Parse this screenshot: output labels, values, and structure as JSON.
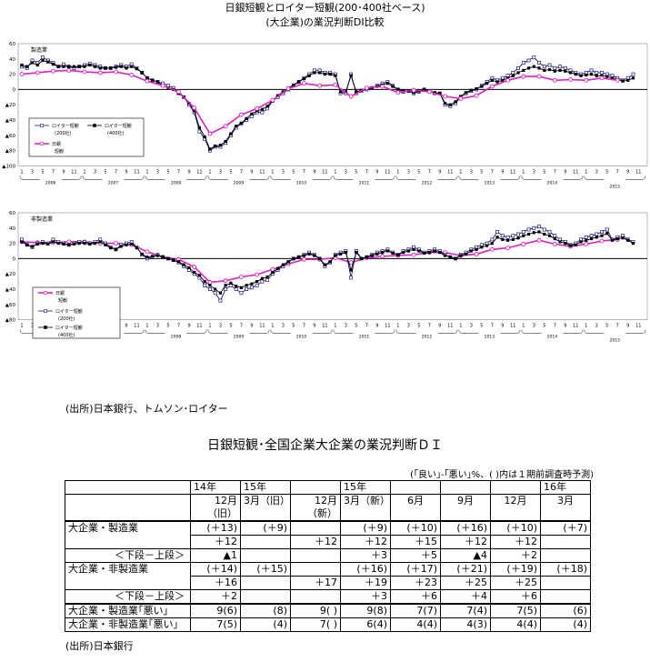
{
  "titles": {
    "line1": "日銀短観とロイター短観(200･400社ベース)",
    "line2": "(大企業)の業況判断DI比較"
  },
  "charts": {
    "top": {
      "panel_label": "製造業",
      "y_ticks": [
        "60",
        "40",
        "20",
        "0",
        "▲20",
        "▲40",
        "▲60",
        "▲80",
        "▲100"
      ],
      "legend": {
        "reuters200": [
          "ロイター短観",
          "(200社)"
        ],
        "reuters400": [
          "ロイター短観",
          "(400社)"
        ],
        "boj": [
          "日銀",
          "短観"
        ]
      },
      "years": [
        "2006",
        "2007",
        "2008",
        "2009",
        "2010",
        "2011",
        "2012",
        "2013",
        "2014",
        "2015"
      ]
    },
    "bottom": {
      "panel_label": "非製造業",
      "y_ticks": [
        "60",
        "40",
        "20",
        "0",
        "▲20",
        "▲40",
        "▲60",
        "▲80"
      ],
      "legend": {
        "boj": [
          "日銀",
          "短観"
        ],
        "reuters200": [
          "ロイター短観",
          "(200社)"
        ],
        "reuters400": [
          "ロイター短観",
          "(400社)"
        ]
      },
      "years": [
        "2006",
        "2007",
        "2008",
        "2009",
        "2010",
        "2011",
        "2012",
        "2013",
        "2014",
        "2015"
      ]
    },
    "month_ticks": [
      "1",
      "3",
      "5",
      "7",
      "9",
      "11"
    ]
  },
  "chart_data": [
    {
      "type": "line",
      "panel": "製造業",
      "x_unit": "month index from 2006-01",
      "ylim": [
        -100,
        60
      ],
      "series": [
        {
          "name": "ロイター短観(200社)",
          "color": "#1a1a80",
          "values": [
            30,
            28,
            38,
            35,
            42,
            38,
            35,
            30,
            33,
            30,
            28,
            30,
            32,
            34,
            32,
            30,
            28,
            28,
            30,
            32,
            30,
            33,
            28,
            22,
            15,
            12,
            10,
            8,
            5,
            2,
            -5,
            -10,
            -20,
            -30,
            -55,
            -65,
            -80,
            -75,
            -75,
            -70,
            -60,
            -50,
            -45,
            -40,
            -35,
            -30,
            -30,
            -25,
            -15,
            -10,
            -5,
            0,
            5,
            10,
            15,
            20,
            25,
            25,
            22,
            22,
            20,
            -5,
            -5,
            20,
            -5,
            -2,
            0,
            2,
            5,
            8,
            10,
            5,
            0,
            -3,
            -2,
            -5,
            -3,
            0,
            -2,
            -5,
            -5,
            -20,
            -22,
            -18,
            -10,
            -5,
            -2,
            0,
            5,
            10,
            15,
            12,
            15,
            18,
            22,
            28,
            35,
            38,
            42,
            35,
            30,
            32,
            28,
            30,
            28,
            25,
            22,
            20,
            22,
            25,
            22,
            22,
            20,
            18,
            15,
            12,
            15,
            20
          ]
        },
        {
          "name": "ロイター短観(400社)",
          "color": "#000000",
          "values": [
            32,
            30,
            35,
            32,
            38,
            36,
            33,
            30,
            30,
            30,
            30,
            30,
            30,
            32,
            30,
            28,
            28,
            28,
            29,
            30,
            28,
            30,
            27,
            22,
            15,
            12,
            10,
            5,
            2,
            0,
            -5,
            -10,
            -18,
            -28,
            -50,
            -62,
            -78,
            -74,
            -73,
            -68,
            -58,
            -48,
            -44,
            -38,
            -32,
            -28,
            -26,
            -22,
            -14,
            -8,
            -3,
            2,
            6,
            10,
            14,
            18,
            22,
            22,
            20,
            20,
            18,
            -3,
            -3,
            18,
            -3,
            -1,
            1,
            2,
            4,
            6,
            8,
            4,
            0,
            -2,
            -2,
            -4,
            -2,
            0,
            -2,
            -4,
            -5,
            -18,
            -20,
            -16,
            -9,
            -4,
            -1,
            1,
            4,
            8,
            12,
            10,
            12,
            15,
            18,
            22,
            25,
            28,
            30,
            28,
            25,
            26,
            24,
            25,
            24,
            22,
            20,
            18,
            19,
            20,
            18,
            18,
            17,
            15,
            13,
            11,
            12,
            15
          ]
        },
        {
          "name": "日銀短観",
          "color": "#e020c0",
          "values": [
            20,
            null,
            null,
            22,
            null,
            null,
            24,
            null,
            null,
            25,
            null,
            null,
            23,
            null,
            null,
            22,
            null,
            null,
            23,
            null,
            null,
            19,
            null,
            null,
            11,
            null,
            null,
            5,
            null,
            null,
            -3,
            null,
            null,
            -24,
            null,
            null,
            -58,
            null,
            null,
            -48,
            null,
            null,
            -33,
            null,
            null,
            -25,
            null,
            null,
            -14,
            null,
            null,
            1,
            null,
            null,
            8,
            null,
            null,
            5,
            null,
            null,
            6,
            null,
            null,
            -9,
            null,
            null,
            2,
            null,
            null,
            4,
            null,
            null,
            -4,
            null,
            null,
            -1,
            null,
            null,
            -3,
            null,
            null,
            -9,
            null,
            null,
            -12,
            null,
            null,
            -8,
            null,
            null,
            4,
            null,
            null,
            12,
            null,
            null,
            17,
            null,
            null,
            17,
            null,
            null,
            12,
            null,
            null,
            13,
            null,
            null,
            12,
            null,
            null,
            15,
            null,
            null,
            12
          ]
        }
      ]
    },
    {
      "type": "line",
      "panel": "非製造業",
      "x_unit": "month index from 2006-01",
      "ylim": [
        -80,
        60
      ],
      "series": [
        {
          "name": "日銀短観",
          "color": "#e020c0",
          "values": [
            22,
            null,
            null,
            21,
            null,
            null,
            21,
            null,
            null,
            22,
            null,
            null,
            22,
            null,
            null,
            20,
            null,
            null,
            20,
            null,
            null,
            18,
            null,
            null,
            9,
            null,
            null,
            2,
            null,
            null,
            -1,
            null,
            null,
            -11,
            null,
            null,
            -31,
            null,
            null,
            -29,
            null,
            null,
            -24,
            null,
            null,
            -21,
            null,
            null,
            -14,
            null,
            null,
            -7,
            null,
            null,
            -1,
            null,
            null,
            -1,
            null,
            null,
            1,
            null,
            null,
            -5,
            null,
            null,
            1,
            null,
            null,
            3,
            null,
            null,
            4,
            null,
            null,
            5,
            null,
            null,
            8,
            null,
            null,
            8,
            null,
            null,
            4,
            null,
            null,
            6,
            null,
            null,
            12,
            null,
            null,
            14,
            null,
            null,
            19,
            null,
            null,
            24,
            null,
            null,
            19,
            null,
            null,
            16,
            null,
            null,
            19,
            null,
            null,
            23,
            null,
            null,
            25
          ]
        },
        {
          "name": "ロイター短観(200社)",
          "color": "#1a1a80",
          "values": [
            25,
            18,
            15,
            20,
            22,
            20,
            25,
            22,
            20,
            18,
            20,
            22,
            22,
            20,
            22,
            25,
            20,
            15,
            12,
            18,
            20,
            22,
            15,
            5,
            0,
            2,
            5,
            2,
            0,
            -2,
            -5,
            -10,
            -15,
            -20,
            -25,
            -35,
            -40,
            -45,
            -55,
            -40,
            -35,
            -40,
            -45,
            -40,
            -38,
            -35,
            -30,
            -28,
            -20,
            -15,
            -10,
            -5,
            0,
            2,
            5,
            8,
            5,
            0,
            -10,
            -5,
            5,
            8,
            10,
            -25,
            10,
            0,
            2,
            5,
            8,
            10,
            12,
            8,
            5,
            10,
            12,
            15,
            12,
            8,
            10,
            12,
            10,
            5,
            2,
            0,
            5,
            8,
            12,
            15,
            18,
            20,
            25,
            35,
            30,
            28,
            30,
            32,
            35,
            38,
            40,
            42,
            38,
            35,
            30,
            25,
            22,
            18,
            20,
            25,
            28,
            30,
            32,
            35,
            38,
            25,
            28,
            30,
            25,
            22
          ]
        },
        {
          "name": "ロイター短観(400社)",
          "color": "#000000",
          "values": [
            22,
            18,
            16,
            19,
            20,
            19,
            22,
            20,
            19,
            18,
            19,
            20,
            20,
            19,
            20,
            22,
            18,
            14,
            12,
            16,
            18,
            19,
            14,
            6,
            2,
            3,
            4,
            2,
            0,
            -2,
            -4,
            -8,
            -12,
            -18,
            -22,
            -30,
            -35,
            -40,
            -45,
            -35,
            -32,
            -36,
            -38,
            -35,
            -33,
            -30,
            -26,
            -24,
            -18,
            -13,
            -8,
            -4,
            0,
            2,
            4,
            6,
            4,
            0,
            -8,
            -4,
            4,
            6,
            8,
            -15,
            8,
            0,
            2,
            4,
            6,
            8,
            10,
            7,
            5,
            8,
            10,
            12,
            10,
            7,
            8,
            10,
            8,
            4,
            2,
            0,
            4,
            6,
            10,
            12,
            15,
            17,
            20,
            28,
            25,
            24,
            25,
            27,
            30,
            32,
            34,
            35,
            32,
            30,
            26,
            22,
            20,
            17,
            18,
            22,
            24,
            26,
            28,
            30,
            33,
            24,
            26,
            27,
            24,
            20
          ]
        }
      ]
    }
  ],
  "sources": {
    "top": "(出所)日本銀行、トムソン･ロイター",
    "bottom": "(出所)日本銀行"
  },
  "table": {
    "title": "日銀短観･全国企業大企業の業況判断ＤＩ",
    "note": "(｢良い｣-｢悪い｣%、( )内は１期前調査時予測)",
    "header": {
      "c1_top": "14年",
      "c1_bottom": "12月（旧）",
      "c2_top": "15年",
      "c2_bottom": "3月（旧）",
      "c3_bottom": "12月（新）",
      "c4_top": "15年",
      "c4_bottom": "3月（新）",
      "c5_bottom": "6月",
      "c6_bottom": "9月",
      "c7_bottom": "12月",
      "c8_top": "16年",
      "c8_bottom": "3月"
    },
    "rows": {
      "mfg_label": "大企業・製造業",
      "mfg_forecast": [
        "(＋13)",
        "(＋9)",
        "",
        "(＋9)",
        "(＋10)",
        "(＋16)",
        "(＋10)",
        "(＋7)"
      ],
      "mfg_actual": [
        "＋12",
        "",
        "＋12",
        "＋12",
        "＋15",
        "＋12",
        "＋12",
        ""
      ],
      "mfg_diff_label": "＜下段－上段＞",
      "mfg_diff": [
        "▲1",
        "",
        "",
        "＋3",
        "＋5",
        "▲4",
        "＋2",
        ""
      ],
      "nonmfg_label": "大企業・非製造業",
      "nonmfg_forecast": [
        "(＋14)",
        "(＋15)",
        "",
        "(＋16)",
        "(＋17)",
        "(＋21)",
        "(＋19)",
        "(＋18)"
      ],
      "nonmfg_actual": [
        "＋16",
        "",
        "＋17",
        "＋19",
        "＋23",
        "＋25",
        "＋25",
        ""
      ],
      "nonmfg_diff_label": "＜下段－上段＞",
      "nonmfg_diff": [
        "＋2",
        "",
        "",
        "＋3",
        "＋6",
        "＋4",
        "＋6",
        ""
      ],
      "mfg_bad_label": "大企業・製造業｢悪い｣",
      "mfg_bad": [
        "9(6)",
        "(8)",
        "9(  )",
        "9(8)",
        "7(7)",
        "7(4)",
        "7(5)",
        "(6)"
      ],
      "nonmfg_bad_label": "大企業・非製造業｢悪い｣",
      "nonmfg_bad": [
        "7(5)",
        "(4)",
        "7(  )",
        "6(4)",
        "4(4)",
        "4(3)",
        "4(4)",
        "(4)"
      ]
    }
  }
}
